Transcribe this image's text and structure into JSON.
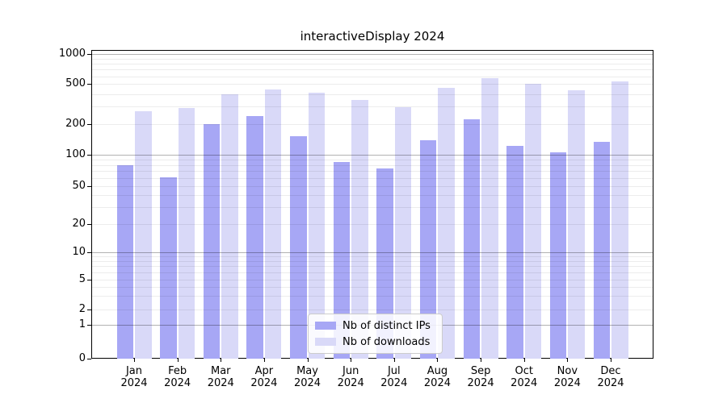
{
  "chart_data": {
    "type": "bar",
    "title": "interactiveDisplay 2024",
    "categories": [
      "Jan",
      "Feb",
      "Mar",
      "Apr",
      "May",
      "Jun",
      "Jul",
      "Aug",
      "Sep",
      "Oct",
      "Nov",
      "Dec"
    ],
    "category_year": "2024",
    "series": [
      {
        "name": "Nb of distinct IPs",
        "color": "#a7a7f5",
        "values": [
          80,
          61,
          200,
          240,
          152,
          85,
          74,
          139,
          225,
          122,
          107,
          134
        ]
      },
      {
        "name": "Nb of downloads",
        "color": "#d9d9f8",
        "values": [
          270,
          290,
          400,
          440,
          415,
          352,
          296,
          460,
          575,
          500,
          435,
          530
        ]
      }
    ],
    "yscale": "symlog",
    "ylim": [
      0,
      1000
    ],
    "yticks": [
      0,
      1,
      2,
      5,
      10,
      20,
      50,
      100,
      200,
      500,
      1000
    ],
    "major_gridline_values": [
      1,
      10,
      100,
      1000
    ],
    "grid": true,
    "legend_position": "inside-bottom-center",
    "colors": {
      "major_grid": "#b3b3b3",
      "minor_grid": "#ececec",
      "axis": "#000000"
    }
  }
}
